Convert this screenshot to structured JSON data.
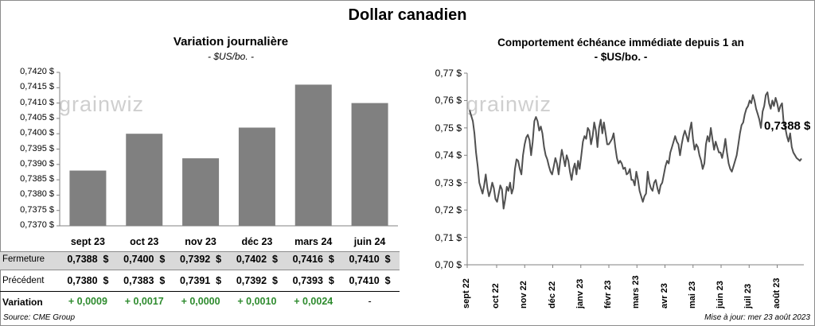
{
  "title": "Dollar canadien",
  "left_chart": {
    "title": "Variation  journalière",
    "unit": "- $US/bo. -",
    "watermark": "grainwiz"
  },
  "right_chart": {
    "title": "Comportement échéance immédiate depuis 1 an",
    "unit": "- $US/bo. -",
    "last_value_label": "0,7388 $",
    "watermark": "grainwiz"
  },
  "table": {
    "rows": [
      {
        "label": "Fermeture",
        "values": [
          "0,7388  $",
          "0,7400  $",
          "0,7392  $",
          "0,7402  $",
          "0,7416  $",
          "0,7410  $"
        ]
      },
      {
        "label": "Précédent",
        "values": [
          "0,7380  $",
          "0,7383  $",
          "0,7391  $",
          "0,7392  $",
          "0,7393  $",
          "0,7410  $"
        ]
      },
      {
        "label": "Variation",
        "values": [
          "+ 0,0009",
          "+ 0,0017",
          "+ 0,0000",
          "+ 0,0010",
          "+ 0,0024",
          "-"
        ]
      }
    ]
  },
  "footer": {
    "source": "Source: CME Group",
    "updated": "Mise à jour: mer 23 août 2023"
  },
  "colors": {
    "bar": "#808080",
    "line": "#505050",
    "positive": "#2e8b2e",
    "closing_row_bg": "#d9d9d9"
  },
  "chart_data": [
    {
      "type": "bar",
      "categories": [
        "sept 23",
        "oct 23",
        "nov 23",
        "déc 23",
        "mars 24",
        "juin 24"
      ],
      "values": [
        0.7388,
        0.74,
        0.7392,
        0.7402,
        0.7416,
        0.741
      ],
      "ylim": [
        0.737,
        0.742
      ],
      "yticks": [
        "0,7370 $",
        "0,7375 $",
        "0,7380 $",
        "0,7385 $",
        "0,7390 $",
        "0,7395 $",
        "0,7400 $",
        "0,7405 $",
        "0,7410 $",
        "0,7415 $",
        "0,7420 $"
      ],
      "grid": false
    },
    {
      "type": "line",
      "x_labels": [
        "sept 22",
        "oct 22",
        "nov 22",
        "déc 22",
        "janv 23",
        "févr 23",
        "mars 23",
        "avr 23",
        "mai 23",
        "juin 23",
        "juil 23",
        "août 23"
      ],
      "ylim": [
        0.7,
        0.77
      ],
      "yticks": [
        "0,70 $",
        "0,71 $",
        "0,72 $",
        "0,73 $",
        "0,74 $",
        "0,75 $",
        "0,76 $",
        "0,77 $"
      ],
      "grid": false,
      "series": [
        {
          "values": [
            0.7565,
            0.7545,
            0.7525,
            0.748,
            0.741,
            0.736,
            0.73,
            0.728,
            0.726,
            0.729,
            0.733,
            0.728,
            0.725,
            0.727,
            0.73,
            0.728,
            0.724,
            0.723,
            0.726,
            0.729,
            0.7275,
            0.7205,
            0.724,
            0.7285,
            0.727,
            0.73,
            0.726,
            0.728,
            0.735,
            0.7385,
            0.738,
            0.735,
            0.733,
            0.74,
            0.744,
            0.7465,
            0.7475,
            0.7455,
            0.74,
            0.745,
            0.7525,
            0.754,
            0.7525,
            0.749,
            0.7505,
            0.748,
            0.743,
            0.74,
            0.7385,
            0.736,
            0.734,
            0.733,
            0.736,
            0.739,
            0.737,
            0.733,
            0.738,
            0.742,
            0.739,
            0.736,
            0.74,
            0.738,
            0.734,
            0.731,
            0.735,
            0.737,
            0.733,
            0.738,
            0.735,
            0.74,
            0.745,
            0.747,
            0.746,
            0.75,
            0.749,
            0.744,
            0.747,
            0.752,
            0.749,
            0.743,
            0.75,
            0.753,
            0.748,
            0.752,
            0.748,
            0.744,
            0.744,
            0.745,
            0.746,
            0.748,
            0.743,
            0.739,
            0.737,
            0.738,
            0.737,
            0.735,
            0.7355,
            0.733,
            0.7335,
            0.735,
            0.731,
            0.731,
            0.729,
            0.734,
            0.731,
            0.727,
            0.725,
            0.723,
            0.725,
            0.726,
            0.734,
            0.73,
            0.728,
            0.727,
            0.73,
            0.731,
            0.728,
            0.726,
            0.729,
            0.73,
            0.733,
            0.736,
            0.738,
            0.737,
            0.741,
            0.743,
            0.745,
            0.747,
            0.745,
            0.744,
            0.74,
            0.744,
            0.747,
            0.749,
            0.747,
            0.745,
            0.749,
            0.752,
            0.746,
            0.742,
            0.744,
            0.743,
            0.74,
            0.738,
            0.735,
            0.737,
            0.744,
            0.747,
            0.745,
            0.75,
            0.746,
            0.742,
            0.745,
            0.743,
            0.741,
            0.741,
            0.739,
            0.742,
            0.746,
            0.741,
            0.737,
            0.735,
            0.734,
            0.736,
            0.738,
            0.74,
            0.744,
            0.748,
            0.751,
            0.752,
            0.755,
            0.757,
            0.758,
            0.76,
            0.759,
            0.762,
            0.76,
            0.757,
            0.755,
            0.753,
            0.75,
            0.756,
            0.758,
            0.762,
            0.763,
            0.759,
            0.757,
            0.76,
            0.758,
            0.761,
            0.759,
            0.756,
            0.758,
            0.759,
            0.752,
            0.75,
            0.747,
            0.745,
            0.748,
            0.743,
            0.741,
            0.74,
            0.739,
            0.7385,
            0.738,
            0.7388
          ]
        }
      ],
      "annotation": "0,7388 $"
    }
  ]
}
